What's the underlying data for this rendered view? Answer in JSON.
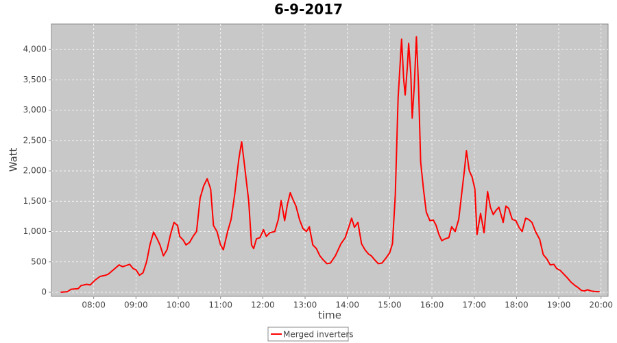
{
  "chart_data": {
    "type": "line",
    "title": "6-9-2017",
    "x_label": "time",
    "y_label": "Watt",
    "x": [
      "07:13",
      "07:23",
      "07:28",
      "07:38",
      "07:42",
      "07:50",
      "07:55",
      "08:02",
      "08:09",
      "08:17",
      "08:21",
      "08:26",
      "08:31",
      "08:36",
      "08:41",
      "08:46",
      "08:51",
      "08:56",
      "09:00",
      "09:05",
      "09:10",
      "09:15",
      "09:20",
      "09:25",
      "09:30",
      "09:34",
      "09:39",
      "09:44",
      "09:49",
      "09:54",
      "09:59",
      "10:02",
      "10:07",
      "10:11",
      "10:16",
      "10:21",
      "10:26",
      "10:31",
      "10:36",
      "10:41",
      "10:46",
      "10:50",
      "10:55",
      "11:00",
      "11:04",
      "11:10",
      "11:15",
      "11:20",
      "11:26",
      "11:30",
      "11:34",
      "11:40",
      "11:44",
      "11:47",
      "11:51",
      "11:56",
      "12:01",
      "12:05",
      "12:10",
      "12:17",
      "12:22",
      "12:26",
      "12:31",
      "12:35",
      "12:39",
      "12:42",
      "12:47",
      "12:52",
      "12:57",
      "13:02",
      "13:06",
      "13:11",
      "13:16",
      "13:21",
      "13:26",
      "13:31",
      "13:36",
      "13:43",
      "13:51",
      "13:57",
      "14:03",
      "14:06",
      "14:10",
      "14:15",
      "14:20",
      "14:25",
      "14:30",
      "14:34",
      "14:39",
      "14:44",
      "14:49",
      "14:54",
      "15:00",
      "15:04",
      "15:08",
      "15:12",
      "15:17",
      "15:20",
      "15:22",
      "15:25",
      "15:27",
      "15:30",
      "15:32",
      "15:35",
      "15:38",
      "15:41",
      "15:44",
      "15:48",
      "15:52",
      "15:57",
      "16:02",
      "16:06",
      "16:10",
      "16:14",
      "16:19",
      "16:24",
      "16:28",
      "16:33",
      "16:38",
      "16:42",
      "16:46",
      "16:49",
      "16:53",
      "16:57",
      "17:01",
      "17:04",
      "17:09",
      "17:14",
      "17:19",
      "17:23",
      "17:27",
      "17:31",
      "17:35",
      "17:40",
      "17:41",
      "17:45",
      "17:49",
      "17:54",
      "17:59",
      "18:04",
      "18:08",
      "18:13",
      "18:17",
      "18:22",
      "18:27",
      "18:33",
      "18:38",
      "18:43",
      "18:48",
      "18:53",
      "18:57",
      "19:02",
      "19:07",
      "19:12",
      "19:17",
      "19:22",
      "19:27",
      "19:32",
      "19:36",
      "19:41",
      "19:46",
      "19:53",
      "19:58"
    ],
    "series": [
      {
        "name": "Merged inverters",
        "color": "#ff0000",
        "values": [
          0,
          10,
          50,
          60,
          110,
          130,
          120,
          200,
          260,
          280,
          300,
          350,
          400,
          450,
          420,
          440,
          460,
          390,
          370,
          280,
          320,
          500,
          790,
          990,
          880,
          780,
          600,
          700,
          950,
          1150,
          1100,
          920,
          860,
          780,
          820,
          920,
          1000,
          1550,
          1750,
          1870,
          1700,
          1100,
          1000,
          780,
          700,
          1000,
          1200,
          1600,
          2200,
          2480,
          2100,
          1500,
          780,
          720,
          880,
          900,
          1030,
          920,
          980,
          1000,
          1200,
          1510,
          1180,
          1450,
          1640,
          1550,
          1420,
          1200,
          1050,
          1000,
          1080,
          780,
          720,
          600,
          530,
          470,
          480,
          600,
          800,
          900,
          1110,
          1220,
          1070,
          1150,
          800,
          700,
          630,
          600,
          530,
          470,
          480,
          550,
          650,
          800,
          1600,
          3200,
          4170,
          3500,
          3250,
          3700,
          4100,
          3600,
          2870,
          3400,
          4210,
          3400,
          2150,
          1700,
          1320,
          1180,
          1190,
          1100,
          950,
          850,
          880,
          900,
          1080,
          1000,
          1200,
          1600,
          2000,
          2330,
          2000,
          1900,
          1700,
          950,
          1300,
          980,
          1660,
          1400,
          1280,
          1350,
          1400,
          1200,
          1150,
          1420,
          1380,
          1200,
          1180,
          1060,
          1000,
          1220,
          1200,
          1150,
          1000,
          870,
          620,
          550,
          450,
          460,
          390,
          360,
          300,
          240,
          170,
          120,
          80,
          30,
          20,
          40,
          20,
          10,
          10
        ]
      }
    ],
    "xlim": [
      "07:00",
      "20:10"
    ],
    "xticks": [
      "08:00",
      "09:00",
      "10:00",
      "11:00",
      "12:00",
      "13:00",
      "14:00",
      "15:00",
      "16:00",
      "17:00",
      "18:00",
      "19:00",
      "20:00"
    ],
    "ylim": [
      -68,
      4420
    ],
    "yticks": [
      0,
      500,
      {
        "value": 1000,
        "label": "1,000"
      },
      {
        "value": 1500,
        "label": "1,500"
      },
      {
        "value": 2000,
        "label": "2,000"
      },
      {
        "value": 2500,
        "label": "2,500"
      },
      {
        "value": 3000,
        "label": "3,000"
      },
      {
        "value": 3500,
        "label": "3,500"
      },
      {
        "value": 4000,
        "label": "4,000"
      }
    ],
    "grid": true,
    "legend": "bottom"
  }
}
